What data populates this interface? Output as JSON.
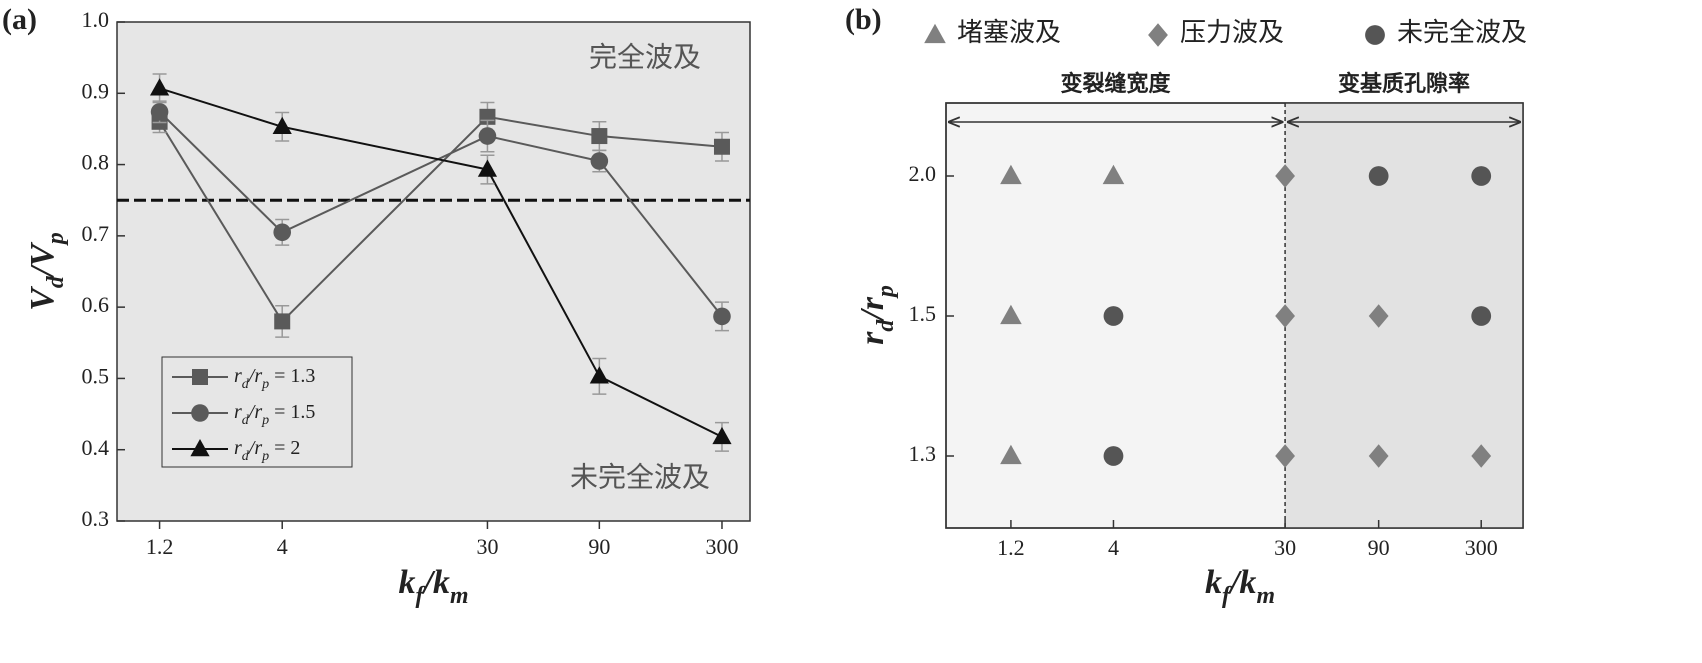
{
  "chart_data": [
    {
      "type": "line",
      "panel_label": "(a)",
      "xlabel": "kf/km",
      "ylabel": "Vd/Vp",
      "xscale": "log",
      "x": [
        1.2,
        4,
        30,
        90,
        300
      ],
      "xlim": [
        0.79,
        395
      ],
      "xticks": [
        1.2,
        4,
        30,
        90,
        300
      ],
      "ylim": [
        0.3,
        1
      ],
      "yticks": [
        0.3,
        0.4,
        0.5,
        0.6,
        0.7,
        0.8,
        0.9,
        {
          "value": 1,
          "label": "1.0"
        }
      ],
      "threshold": 0.75,
      "annotations": [
        "完全波及",
        "未完全波及"
      ],
      "series": [
        {
          "name": "rd/rp = 1.3",
          "color": "#5a5a5a",
          "marker": "square",
          "values": [
            0.86,
            0.58,
            0.867,
            0.84,
            0.825
          ],
          "errors": [
            0.015,
            0.022,
            0.02,
            0.02,
            0.02
          ]
        },
        {
          "name": "rd/rp = 1.5",
          "color": "#5a5a5a",
          "marker": "circle",
          "values": [
            0.874,
            0.705,
            0.84,
            0.805,
            0.587
          ],
          "errors": [
            0.015,
            0.018,
            0.022,
            0.015,
            0.02
          ]
        },
        {
          "name": "rd/rp = 2",
          "color": "#111111",
          "marker": "triangle",
          "values": [
            0.907,
            0.853,
            0.793,
            0.503,
            0.418
          ],
          "errors": [
            0.02,
            0.02,
            0.02,
            0.025,
            0.02
          ]
        }
      ]
    },
    {
      "type": "scatter",
      "panel_label": "(b)",
      "xlabel": "kf/km",
      "ylabel": "rd/rp",
      "xscale": "log",
      "xlim": [
        0.56,
        490
      ],
      "xticks": [
        1.2,
        4,
        30,
        90,
        300
      ],
      "y_categories": [
        "2.0",
        "1.5",
        "1.3"
      ],
      "divider": 30,
      "regions": [
        "变裂缝宽度",
        "变基质孔隙率"
      ],
      "series": [
        {
          "name": "堵塞波及",
          "marker": "triangle",
          "color": "#808080",
          "x": [
            1.2,
            4,
            1.2,
            1.2
          ],
          "y": [
            "2.0",
            "2.0",
            "1.5",
            "1.3"
          ]
        },
        {
          "name": "压力波及",
          "marker": "diamond",
          "color": "#808080",
          "x": [
            30,
            30,
            90,
            30,
            90,
            300
          ],
          "y": [
            "2.0",
            "1.5",
            "1.5",
            "1.3",
            "1.3",
            "1.3"
          ]
        },
        {
          "name": "未完全波及",
          "marker": "circle",
          "color": "#555555",
          "x": [
            90,
            300,
            4,
            300,
            4
          ],
          "y": [
            "2.0",
            "2.0",
            "1.5",
            "1.5",
            "1.3"
          ]
        }
      ]
    }
  ]
}
